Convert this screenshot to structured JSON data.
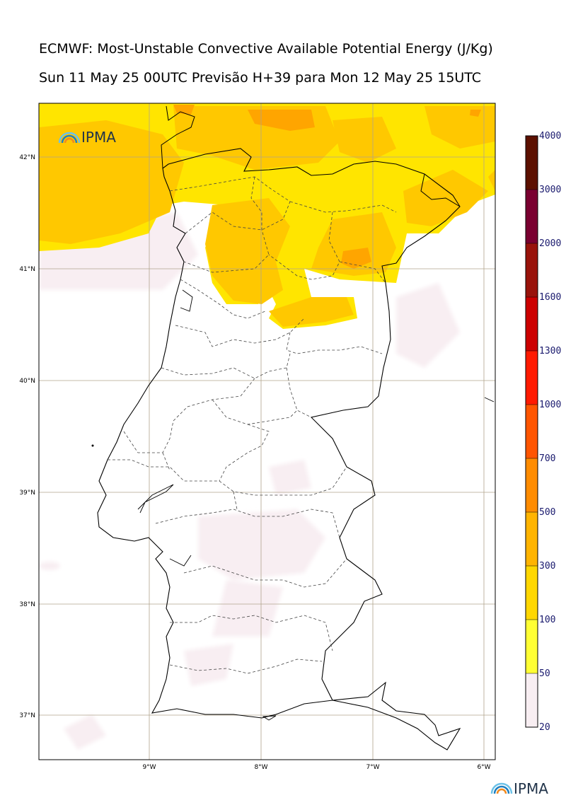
{
  "title_line1": "ECMWF: Most-Unstable Convective Available Potential Energy (J/Kg)",
  "title_line2": "Sun 11 May 25 00UTC Previsão H+39 para Mon 12 May 25 15UTC",
  "logo": {
    "text": "IPMA",
    "icon": "ipma-arc-logo-icon",
    "colors": [
      "#6cc2e8",
      "#1f7fc0",
      "#f28a1e"
    ]
  },
  "lat_labels": [
    "42°N",
    "41°N",
    "40°N",
    "39°N",
    "38°N",
    "37°N"
  ],
  "lon_labels": [
    "9°W",
    "8°W",
    "7°W",
    "6°W"
  ],
  "colorbar": {
    "labels": [
      "20",
      "50",
      "100",
      "300",
      "500",
      "700",
      "1000",
      "1300",
      "1600",
      "2000",
      "3000",
      "4000"
    ],
    "colors": [
      "#f8eef2",
      "#ffff33",
      "#ffd700",
      "#ffb400",
      "#ff8c00",
      "#ff5500",
      "#ff1a00",
      "#cc0000",
      "#99130b",
      "#7a0030",
      "#5c1000"
    ]
  }
}
